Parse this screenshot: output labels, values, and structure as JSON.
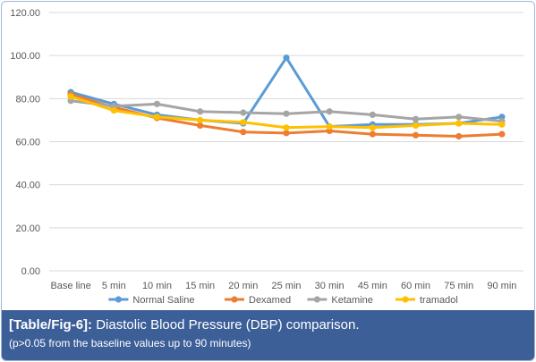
{
  "chart_data": {
    "type": "line",
    "title": "",
    "xlabel": "",
    "ylabel": "",
    "categories": [
      "Base line",
      "5 min",
      "10 min",
      "15 min",
      "20 min",
      "25 min",
      "30 min",
      "45 min",
      "60 min",
      "75 min",
      "90 min"
    ],
    "ylim": [
      0,
      120
    ],
    "yticks": [
      "0.00",
      "20.00",
      "40.00",
      "60.00",
      "80.00",
      "100.00",
      "120.00"
    ],
    "grid": true,
    "legend_position": "bottom",
    "series": [
      {
        "name": "Normal Saline",
        "color": "#5b9bd5",
        "values": [
          83.0,
          77.5,
          72.5,
          70.0,
          68.5,
          99.0,
          67.0,
          68.0,
          68.0,
          68.5,
          71.5
        ]
      },
      {
        "name": "Dexamed",
        "color": "#ed7d31",
        "values": [
          82.0,
          76.0,
          71.0,
          67.5,
          64.5,
          64.0,
          65.0,
          63.5,
          63.0,
          62.5,
          63.5
        ]
      },
      {
        "name": "Ketamine",
        "color": "#a5a5a5",
        "values": [
          79.0,
          76.5,
          77.5,
          74.0,
          73.5,
          73.0,
          74.0,
          72.5,
          70.5,
          71.5,
          69.5
        ]
      },
      {
        "name": "tramadol",
        "color": "#ffc000",
        "values": [
          81.0,
          74.5,
          71.5,
          70.0,
          69.0,
          66.5,
          67.0,
          66.5,
          67.5,
          68.5,
          68.0
        ]
      }
    ]
  },
  "caption": {
    "label": "[Table/Fig-6]:",
    "title": " Diastolic Blood Pressure (DBP) comparison.",
    "note": "(p>0.05 from the baseline values up to 90 minutes)"
  }
}
